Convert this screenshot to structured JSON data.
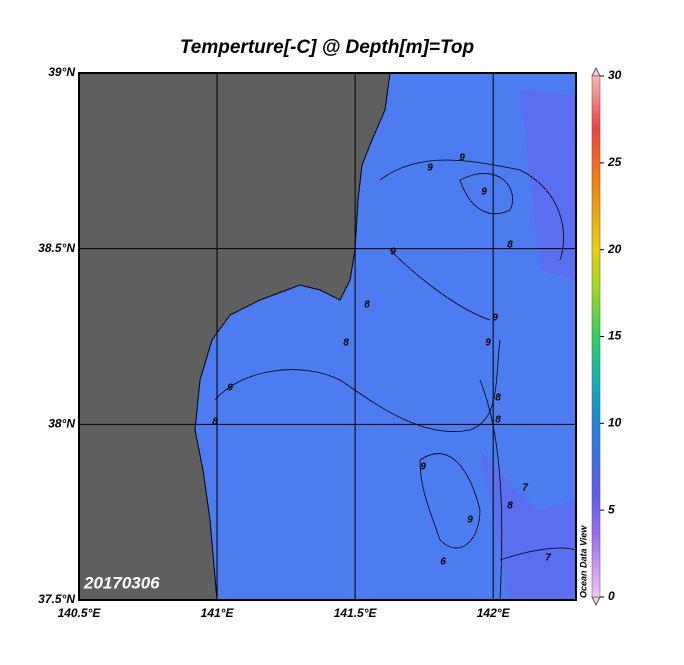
{
  "title": "Temperture[-C] @ Depth[m]=Top",
  "map": {
    "lat_range": [
      37.5,
      39
    ],
    "lon_range": [
      140.5,
      142.3
    ],
    "lat_ticks": [
      {
        "value": 39,
        "label": "39°N"
      },
      {
        "value": 38.5,
        "label": "38.5°N"
      },
      {
        "value": 38,
        "label": "38°N"
      },
      {
        "value": 37.5,
        "label": "37.5°N"
      }
    ],
    "lon_ticks": [
      {
        "value": 140.5,
        "label": "140.5°E"
      },
      {
        "value": 141,
        "label": "141°E"
      },
      {
        "value": 141.5,
        "label": "141.5°E"
      },
      {
        "value": 142,
        "label": "142°E"
      }
    ],
    "date_label": "20170306",
    "contour_labels": [
      "9",
      "9",
      "9",
      "9",
      "8",
      "8",
      "8",
      "9",
      "9",
      "9",
      "8",
      "8",
      "9",
      "9",
      "8",
      "7",
      "7",
      "8",
      "6"
    ]
  },
  "colorbar": {
    "range": [
      0,
      30
    ],
    "ticks": [
      0,
      5,
      10,
      15,
      20,
      25,
      30
    ],
    "watermark": "Ocean Data View"
  }
}
